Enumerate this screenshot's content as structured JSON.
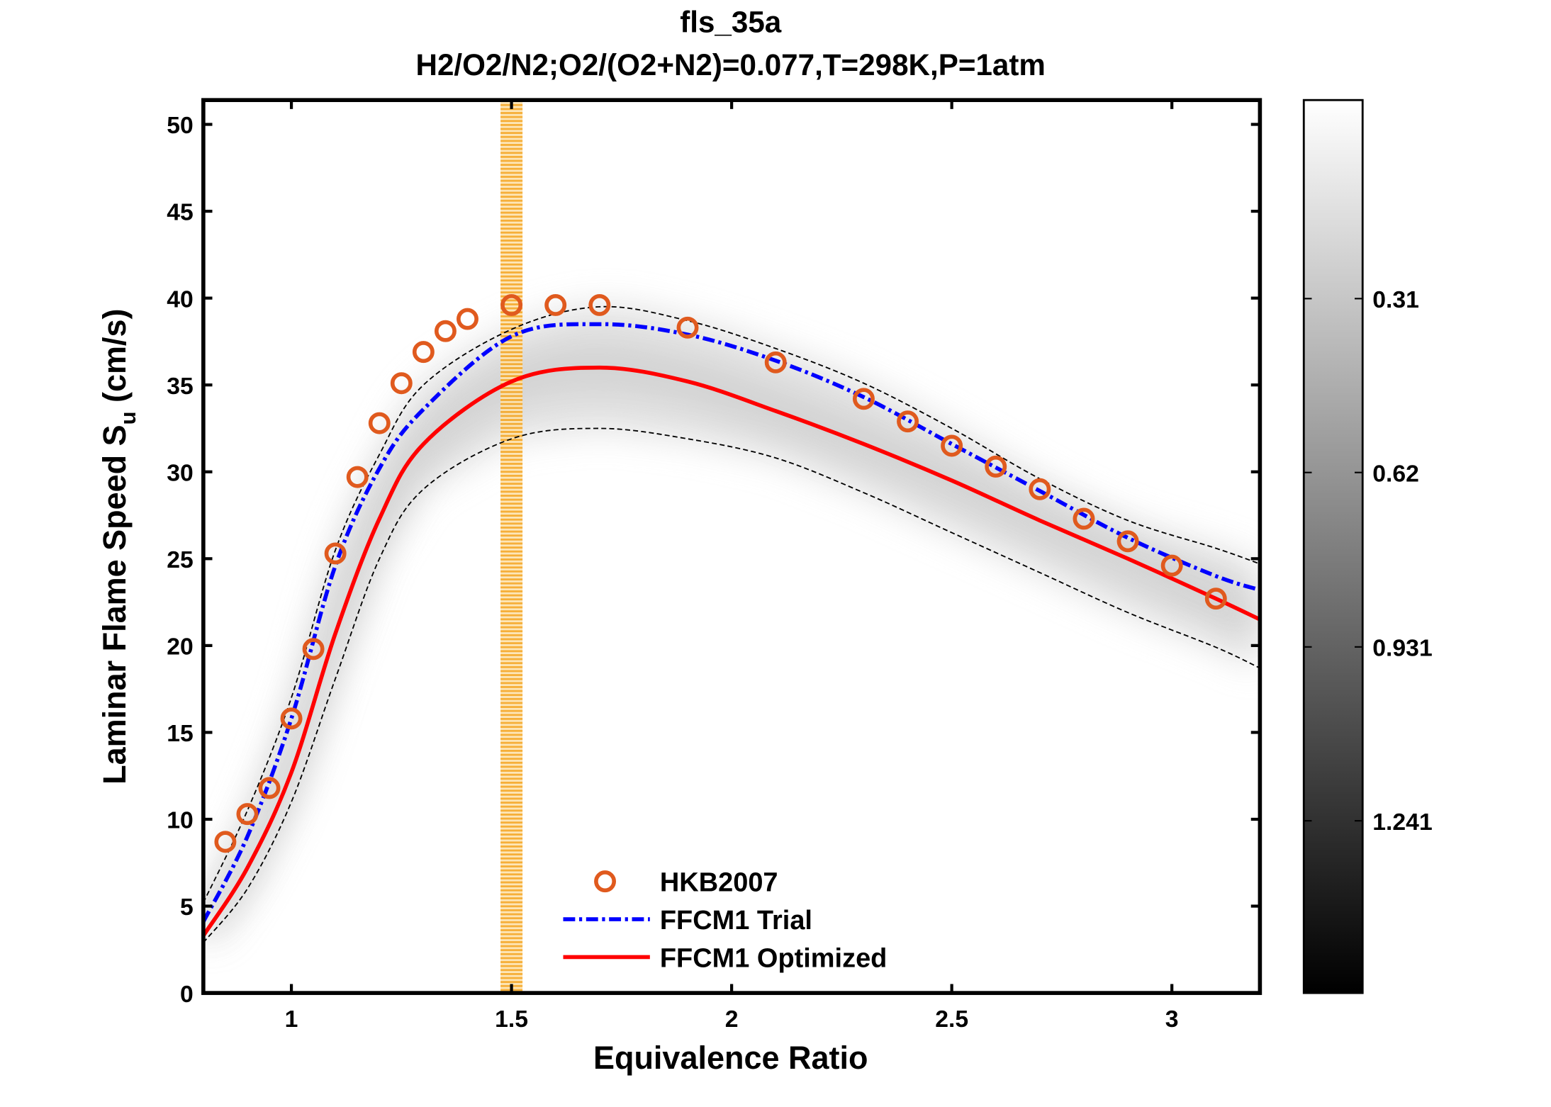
{
  "chart_data": {
    "type": "line",
    "title": "fls_35a",
    "subtitle": "H2/O2/N2;O2/(O2+N2)=0.077,T=298K,P=1atm",
    "xlabel": "Equivalence Ratio",
    "ylabel_main": "Laminar Flame Speed S",
    "ylabel_sub": "u",
    "ylabel_unit": " (cm/s)",
    "xlim": [
      0.8,
      3.2
    ],
    "ylim": [
      0,
      51.4
    ],
    "xticks": [
      1,
      1.5,
      2,
      2.5,
      3
    ],
    "xtick_labels": [
      "1",
      "1.5",
      "2",
      "2.5",
      "3"
    ],
    "yticks": [
      0,
      5,
      10,
      15,
      20,
      25,
      30,
      35,
      40,
      45,
      50
    ],
    "ytick_labels": [
      "0",
      "5",
      "10",
      "15",
      "20",
      "25",
      "30",
      "35",
      "40",
      "45",
      "50"
    ],
    "grid": false,
    "legend_placement": "bottom-center",
    "highlight_band": {
      "x": [
        1.475,
        1.525
      ],
      "color": "#f5a623"
    },
    "colorbar": {
      "colormap": "gray-reversed",
      "ticks": [
        0.31,
        0.62,
        0.931,
        1.241
      ],
      "tick_labels": [
        "0.31",
        "0.62",
        "0.931",
        "1.241"
      ],
      "range": [
        -0.044,
        1.548
      ]
    },
    "series": [
      {
        "name": "HKB2007",
        "kind": "scatter",
        "color": "#e05a1e",
        "x": [
          0.85,
          0.9,
          0.95,
          1.0,
          1.05,
          1.1,
          1.15,
          1.2,
          1.25,
          1.3,
          1.35,
          1.4,
          1.5,
          1.6,
          1.7,
          1.9,
          2.1,
          2.3,
          2.4,
          2.5,
          2.6,
          2.7,
          2.8,
          2.9,
          3.0,
          3.1
        ],
        "y": [
          8.7,
          10.3,
          11.8,
          15.8,
          19.8,
          25.3,
          29.7,
          32.8,
          35.1,
          36.9,
          38.1,
          38.8,
          39.6,
          39.6,
          39.6,
          38.3,
          36.3,
          34.2,
          32.9,
          31.5,
          30.3,
          29.0,
          27.3,
          26.0,
          24.6,
          22.7
        ]
      },
      {
        "name": "FFCM1 Trial",
        "kind": "line",
        "style": "dash-dot",
        "color": "#0000ff",
        "x": [
          0.8,
          0.9,
          1.0,
          1.1,
          1.2,
          1.3,
          1.5,
          1.7,
          1.9,
          2.1,
          2.3,
          2.5,
          2.7,
          2.9,
          3.1,
          3.2
        ],
        "y": [
          4.1,
          9.0,
          15.8,
          24.6,
          30.2,
          33.6,
          37.8,
          38.5,
          37.9,
          36.4,
          34.3,
          31.6,
          28.9,
          26.2,
          24.0,
          23.2
        ]
      },
      {
        "name": "FFCM1 Optimized",
        "kind": "line",
        "style": "solid",
        "color": "#ff0000",
        "x": [
          0.8,
          0.9,
          1.0,
          1.1,
          1.2,
          1.3,
          1.5,
          1.7,
          1.9,
          2.1,
          2.3,
          2.5,
          2.7,
          2.9,
          3.1,
          3.2
        ],
        "y": [
          3.3,
          7.2,
          12.7,
          20.7,
          27.3,
          31.6,
          35.2,
          36.0,
          35.2,
          33.5,
          31.6,
          29.5,
          27.2,
          25.0,
          22.7,
          21.5
        ]
      },
      {
        "kind": "line",
        "style": "dashed",
        "color": "#000000",
        "x": [
          0.8,
          0.9,
          1.0,
          1.1,
          1.2,
          1.3,
          1.5,
          1.7,
          1.9,
          2.1,
          2.3,
          2.5,
          2.7,
          2.9,
          3.1,
          3.2
        ],
        "y": [
          5.2,
          10.5,
          17.0,
          25.5,
          31.0,
          35.0,
          38.2,
          39.5,
          38.7,
          37.1,
          35.1,
          32.5,
          29.6,
          27.2,
          25.6,
          24.7
        ]
      },
      {
        "kind": "line",
        "style": "dashed",
        "color": "#000000",
        "x": [
          0.8,
          0.9,
          1.0,
          1.1,
          1.2,
          1.3,
          1.5,
          1.7,
          1.9,
          2.1,
          2.3,
          2.5,
          2.7,
          2.9,
          3.1,
          3.2
        ],
        "y": [
          2.9,
          6.0,
          11.0,
          18.1,
          25.0,
          29.0,
          31.9,
          32.5,
          31.9,
          30.8,
          28.8,
          26.5,
          24.2,
          21.9,
          19.9,
          18.7
        ]
      }
    ]
  }
}
